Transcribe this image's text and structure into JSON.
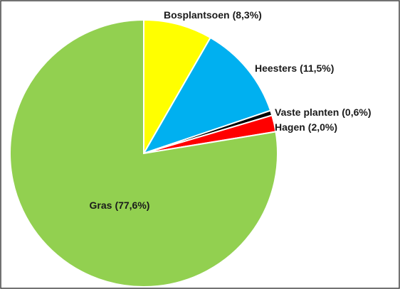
{
  "chart_data": {
    "type": "pie",
    "categories": [
      "Bosplantsoen",
      "Heesters",
      "Vaste planten",
      "Hagen",
      "Gras"
    ],
    "values": [
      8.3,
      11.5,
      0.6,
      2.0,
      77.6
    ],
    "value_labels": [
      "(8,3%)",
      "(11,5%)",
      "(0,6%)",
      "(2,0%)",
      "(77,6%)"
    ],
    "colors": [
      "#ffff00",
      "#00b0f0",
      "#000000",
      "#ff0000",
      "#92d050"
    ]
  }
}
